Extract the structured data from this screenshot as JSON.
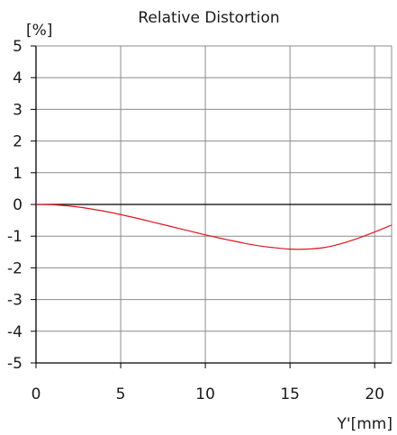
{
  "chart_data": {
    "type": "line",
    "title": "Relative Distortion",
    "ylabel": "[%]",
    "xlabel": "Y'[mm]",
    "xlim": [
      0,
      21
    ],
    "ylim": [
      -5,
      5
    ],
    "xticks": [
      0,
      5,
      10,
      15,
      20
    ],
    "yticks": [
      5,
      4,
      3,
      2,
      1,
      0,
      -1,
      -2,
      -3,
      -4,
      -5
    ],
    "grid": true,
    "series": [
      {
        "name": "",
        "color": "#e0141e",
        "x": [
          0,
          1,
          2,
          3,
          4,
          5,
          6,
          7,
          8,
          9,
          10,
          11,
          12,
          13,
          14,
          15,
          16,
          17,
          18,
          19,
          20,
          21
        ],
        "values": [
          0,
          -0.01,
          -0.05,
          -0.12,
          -0.21,
          -0.32,
          -0.44,
          -0.57,
          -0.7,
          -0.83,
          -0.96,
          -1.08,
          -1.19,
          -1.29,
          -1.36,
          -1.41,
          -1.41,
          -1.36,
          -1.24,
          -1.07,
          -0.87,
          -0.65
        ]
      }
    ]
  }
}
